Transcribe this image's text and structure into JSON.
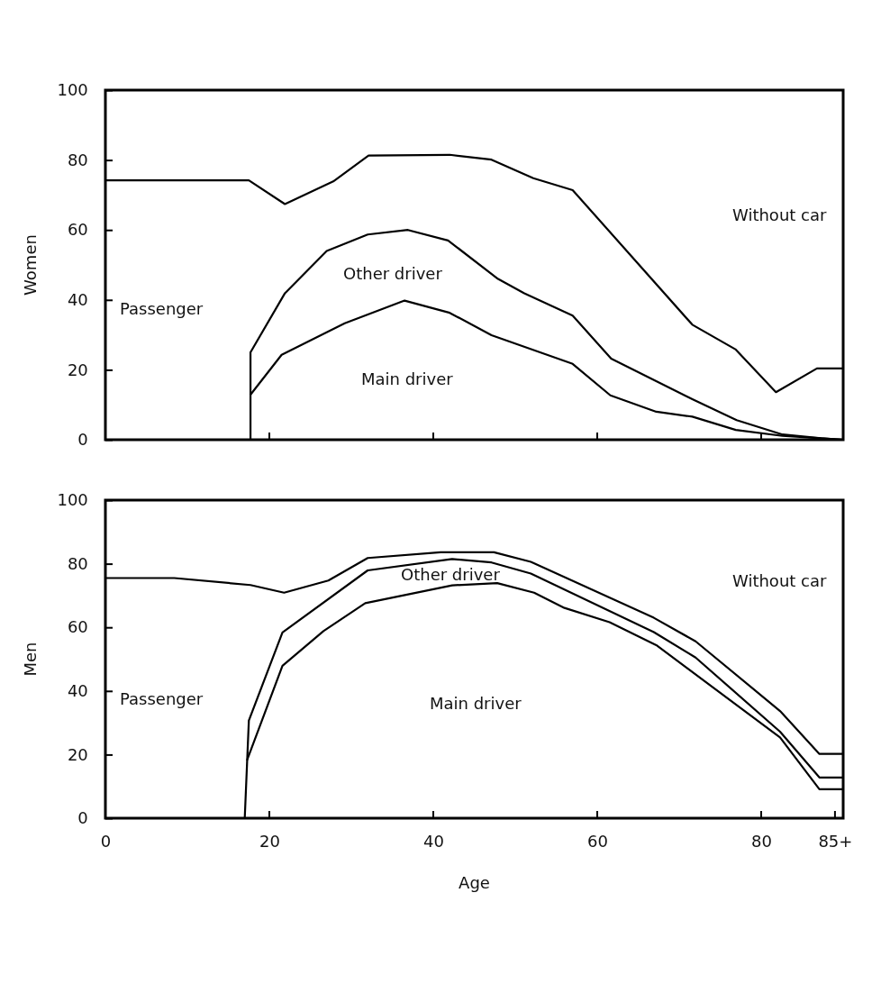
{
  "chart_data": [
    {
      "type": "line",
      "ylabel": "Women",
      "xlim": [
        0,
        90
      ],
      "xticks": [
        {
          "value": 20,
          "label": null
        },
        {
          "value": 40,
          "label": null
        },
        {
          "value": 60,
          "label": null
        },
        {
          "value": 80,
          "label": null
        }
      ],
      "ylim": [
        0,
        100
      ],
      "yticks": [
        0,
        20,
        40,
        60,
        80,
        100
      ],
      "tick_labels": "y",
      "series": [
        {
          "color": "#000000",
          "x": [
            17.7,
            21.5,
            29.2,
            36.5,
            42.0,
            47.1,
            57.0,
            61.6,
            67.2,
            71.6,
            76.9,
            82.6,
            87.3,
            90
          ],
          "values": [
            12.9,
            24.3,
            33.3,
            39.8,
            36.3,
            29.9,
            21.7,
            12.7,
            8.0,
            6.6,
            2.8,
            1.1,
            0.4,
            0
          ]
        },
        {
          "color": "#000000",
          "x": [
            17.7,
            17.7,
            21.9,
            27.0,
            32.0,
            36.9,
            41.8,
            47.9,
            51.1,
            57.0,
            61.7,
            71.6,
            77.0,
            82.6,
            87.3,
            90
          ],
          "values": [
            0,
            25.0,
            41.9,
            54.0,
            58.7,
            60.0,
            57.0,
            46.0,
            41.9,
            35.5,
            23.2,
            11.6,
            5.6,
            1.5,
            0.4,
            0
          ]
        },
        {
          "color": "#000000",
          "x": [
            0,
            17.5,
            21.9,
            27.8,
            32.1,
            42.0,
            47.1,
            52.2,
            57.0,
            71.6,
            76.9,
            81.8,
            86.8,
            90
          ],
          "values": [
            74.2,
            74.2,
            67.4,
            73.9,
            81.3,
            81.5,
            80.1,
            74.8,
            71.4,
            32.9,
            25.8,
            13.6,
            20.4,
            20.4
          ]
        }
      ],
      "annotations": [
        "Main driver",
        "Other driver",
        "Passenger",
        "Without car"
      ]
    },
    {
      "type": "line",
      "ylabel": "Men",
      "xlabel": "Age",
      "xlim": [
        0,
        90
      ],
      "xticks": [
        0,
        20,
        40,
        60,
        80,
        {
          "value": 89,
          "label": "85+"
        }
      ],
      "ylim": [
        0,
        100
      ],
      "yticks": [
        0,
        20,
        40,
        60,
        80,
        100
      ],
      "series": [
        {
          "color": "#000000",
          "x": [
            17.3,
            21.6,
            26.6,
            31.7,
            42.3,
            47.8,
            52.3,
            56.0,
            61.5,
            67.2,
            82.3,
            87.1,
            90
          ],
          "values": [
            18.4,
            47.9,
            58.8,
            67.6,
            73.2,
            73.9,
            70.9,
            66.1,
            61.6,
            54.4,
            25.4,
            9.1,
            9.1
          ]
        },
        {
          "color": "#000000",
          "x": [
            17.0,
            17.5,
            21.6,
            32.0,
            42.3,
            47.1,
            51.9,
            66.9,
            72.0,
            82.3,
            87.1,
            90
          ],
          "values": [
            0,
            30.7,
            58.4,
            77.9,
            81.5,
            80.4,
            76.9,
            58.5,
            50.5,
            27.2,
            12.8,
            12.8
          ]
        },
        {
          "color": "#000000",
          "x": [
            0,
            8.4,
            17.7,
            21.8,
            27.2,
            32.0,
            40.9,
            47.4,
            51.9,
            66.9,
            72.0,
            82.3,
            87.1,
            90
          ],
          "values": [
            75.5,
            75.5,
            73.3,
            70.9,
            74.7,
            81.8,
            83.6,
            83.6,
            80.6,
            63.0,
            55.6,
            33.7,
            20.2,
            20.2
          ]
        }
      ],
      "annotations": [
        "Main driver",
        "Other driver",
        "Passenger",
        "Without car"
      ]
    }
  ]
}
